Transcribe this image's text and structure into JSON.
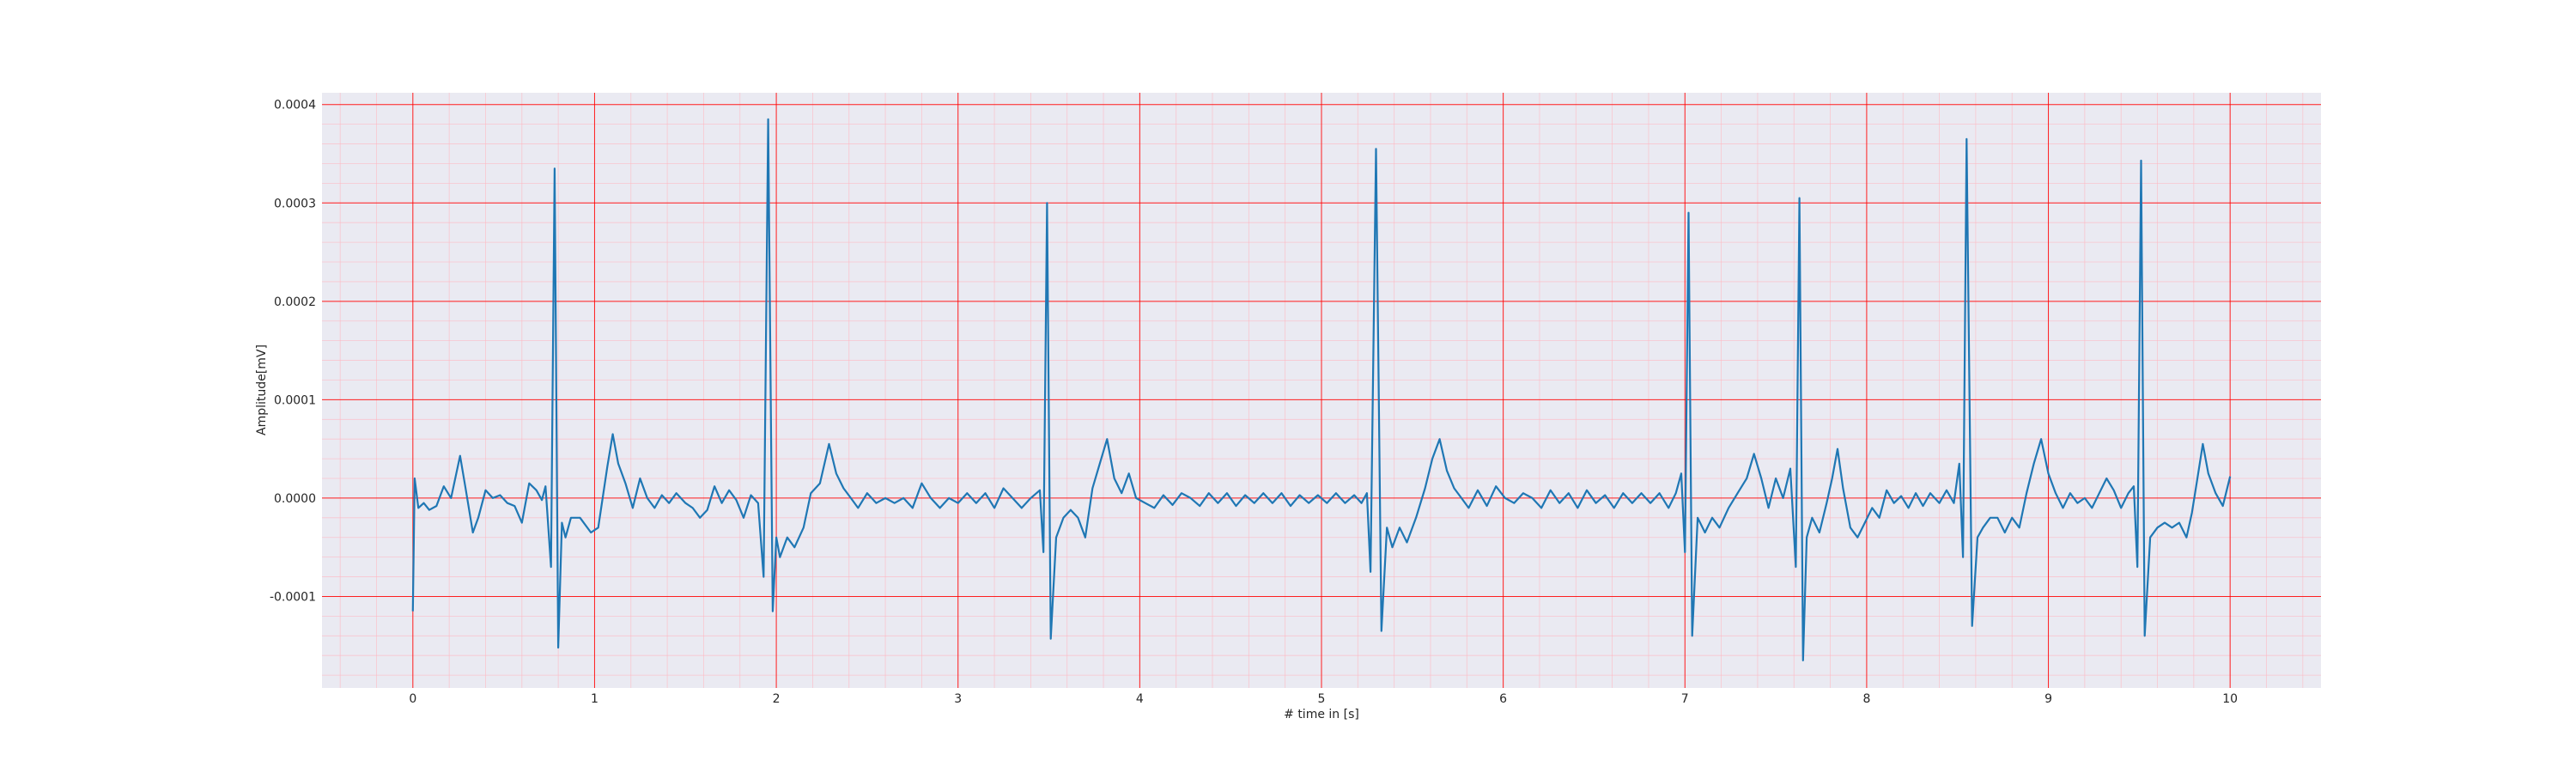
{
  "chart_data": {
    "type": "line",
    "title": "",
    "xlabel": "# time in [s]",
    "ylabel": "Amplitude[mV]",
    "xlim": [
      -0.5,
      10.5
    ],
    "ylim": [
      -0.000193,
      0.000412
    ],
    "xticks": [
      0,
      1,
      2,
      3,
      4,
      5,
      6,
      7,
      8,
      9,
      10
    ],
    "xtick_labels": [
      "0",
      "1",
      "2",
      "3",
      "4",
      "5",
      "6",
      "7",
      "8",
      "9",
      "10"
    ],
    "yticks": [
      -0.0001,
      0.0,
      0.0001,
      0.0002,
      0.0003,
      0.0004
    ],
    "ytick_labels": [
      "-0.0001",
      "0.0000",
      "0.0001",
      "0.0002",
      "0.0003",
      "0.0004"
    ],
    "grid": "major red lines every 1 s and 0.0001 mV; minor pink lines every 0.2 s and 0.00002 mV",
    "background": "#eaeaf2",
    "colors": {
      "line": "#1f77b4",
      "major_grid": "#ff0000",
      "minor_grid": "#ffb6c1"
    },
    "series": [
      {
        "sampling": "approximate trace traced from the figure",
        "points": [
          [
            0.0,
            -0.000115
          ],
          [
            0.01,
            2e-05
          ],
          [
            0.03,
            -1e-05
          ],
          [
            0.06,
            -5e-06
          ],
          [
            0.09,
            -1.2e-05
          ],
          [
            0.13,
            -8e-06
          ],
          [
            0.17,
            1.2e-05
          ],
          [
            0.21,
            0.0
          ],
          [
            0.26,
            4.3e-05
          ],
          [
            0.29,
            1e-05
          ],
          [
            0.33,
            -3.5e-05
          ],
          [
            0.36,
            -2e-05
          ],
          [
            0.4,
            8e-06
          ],
          [
            0.44,
            0.0
          ],
          [
            0.48,
            3e-06
          ],
          [
            0.52,
            -5e-06
          ],
          [
            0.56,
            -8e-06
          ],
          [
            0.6,
            -2.5e-05
          ],
          [
            0.64,
            1.5e-05
          ],
          [
            0.68,
            8e-06
          ],
          [
            0.71,
            -2e-06
          ],
          [
            0.73,
            1.2e-05
          ],
          [
            0.76,
            -7e-05
          ],
          [
            0.78,
            0.000335
          ],
          [
            0.8,
            -0.000152
          ],
          [
            0.82,
            -2.5e-05
          ],
          [
            0.84,
            -4e-05
          ],
          [
            0.87,
            -2e-05
          ],
          [
            0.92,
            -2e-05
          ],
          [
            0.98,
            -3.5e-05
          ],
          [
            1.02,
            -3e-05
          ],
          [
            1.07,
            3.2e-05
          ],
          [
            1.1,
            6.5e-05
          ],
          [
            1.13,
            3.5e-05
          ],
          [
            1.17,
            1.5e-05
          ],
          [
            1.21,
            -1e-05
          ],
          [
            1.25,
            2e-05
          ],
          [
            1.29,
            0.0
          ],
          [
            1.33,
            -1e-05
          ],
          [
            1.37,
            3e-06
          ],
          [
            1.41,
            -5e-06
          ],
          [
            1.45,
            5e-06
          ],
          [
            1.5,
            -5e-06
          ],
          [
            1.54,
            -1e-05
          ],
          [
            1.58,
            -2e-05
          ],
          [
            1.62,
            -1.2e-05
          ],
          [
            1.66,
            1.2e-05
          ],
          [
            1.7,
            -5e-06
          ],
          [
            1.74,
            8e-06
          ],
          [
            1.78,
            -2e-06
          ],
          [
            1.82,
            -2e-05
          ],
          [
            1.86,
            3e-06
          ],
          [
            1.9,
            -5e-06
          ],
          [
            1.93,
            -8e-05
          ],
          [
            1.955,
            0.000385
          ],
          [
            1.98,
            -0.000115
          ],
          [
            2.0,
            -4e-05
          ],
          [
            2.02,
            -6e-05
          ],
          [
            2.06,
            -4e-05
          ],
          [
            2.1,
            -5e-05
          ],
          [
            2.15,
            -3e-05
          ],
          [
            2.19,
            5e-06
          ],
          [
            2.24,
            1.5e-05
          ],
          [
            2.29,
            5.5e-05
          ],
          [
            2.33,
            2.5e-05
          ],
          [
            2.37,
            1e-05
          ],
          [
            2.41,
            0.0
          ],
          [
            2.45,
            -1e-05
          ],
          [
            2.5,
            5e-06
          ],
          [
            2.55,
            -5e-06
          ],
          [
            2.6,
            0.0
          ],
          [
            2.65,
            -5e-06
          ],
          [
            2.7,
            0.0
          ],
          [
            2.75,
            -1e-05
          ],
          [
            2.8,
            1.5e-05
          ],
          [
            2.85,
            0.0
          ],
          [
            2.9,
            -1e-05
          ],
          [
            2.95,
            0.0
          ],
          [
            3.0,
            -5e-06
          ],
          [
            3.05,
            5e-06
          ],
          [
            3.1,
            -5e-06
          ],
          [
            3.15,
            5e-06
          ],
          [
            3.2,
            -1e-05
          ],
          [
            3.25,
            1e-05
          ],
          [
            3.3,
            0.0
          ],
          [
            3.35,
            -1e-05
          ],
          [
            3.4,
            0.0
          ],
          [
            3.45,
            8e-06
          ],
          [
            3.47,
            -5.5e-05
          ],
          [
            3.49,
            0.0003
          ],
          [
            3.51,
            -0.000143
          ],
          [
            3.54,
            -4e-05
          ],
          [
            3.58,
            -2e-05
          ],
          [
            3.62,
            -1.2e-05
          ],
          [
            3.66,
            -2e-05
          ],
          [
            3.7,
            -4e-05
          ],
          [
            3.74,
            1e-05
          ],
          [
            3.78,
            3.5e-05
          ],
          [
            3.82,
            6e-05
          ],
          [
            3.86,
            2e-05
          ],
          [
            3.9,
            5e-06
          ],
          [
            3.94,
            2.5e-05
          ],
          [
            3.98,
            0.0
          ],
          [
            4.03,
            -5e-06
          ],
          [
            4.08,
            -1e-05
          ],
          [
            4.13,
            3e-06
          ],
          [
            4.18,
            -7e-06
          ],
          [
            4.23,
            5e-06
          ],
          [
            4.28,
            0.0
          ],
          [
            4.33,
            -8e-06
          ],
          [
            4.38,
            5e-06
          ],
          [
            4.43,
            -5e-06
          ],
          [
            4.48,
            5e-06
          ],
          [
            4.53,
            -8e-06
          ],
          [
            4.58,
            3e-06
          ],
          [
            4.63,
            -5e-06
          ],
          [
            4.68,
            5e-06
          ],
          [
            4.73,
            -5e-06
          ],
          [
            4.78,
            5e-06
          ],
          [
            4.83,
            -8e-06
          ],
          [
            4.88,
            3e-06
          ],
          [
            4.93,
            -5e-06
          ],
          [
            4.98,
            3e-06
          ],
          [
            5.03,
            -5e-06
          ],
          [
            5.08,
            5e-06
          ],
          [
            5.13,
            -5e-06
          ],
          [
            5.18,
            3e-06
          ],
          [
            5.22,
            -5e-06
          ],
          [
            5.25,
            5e-06
          ],
          [
            5.27,
            -7.5e-05
          ],
          [
            5.3,
            0.000355
          ],
          [
            5.33,
            -0.000135
          ],
          [
            5.36,
            -3e-05
          ],
          [
            5.39,
            -5e-05
          ],
          [
            5.43,
            -3e-05
          ],
          [
            5.47,
            -4.5e-05
          ],
          [
            5.52,
            -2e-05
          ],
          [
            5.57,
            1e-05
          ],
          [
            5.61,
            4e-05
          ],
          [
            5.65,
            6e-05
          ],
          [
            5.69,
            2.8e-05
          ],
          [
            5.73,
            1e-05
          ],
          [
            5.77,
            0.0
          ],
          [
            5.81,
            -1e-05
          ],
          [
            5.86,
            8e-06
          ],
          [
            5.91,
            -8e-06
          ],
          [
            5.96,
            1.2e-05
          ],
          [
            6.01,
            0.0
          ],
          [
            6.06,
            -5e-06
          ],
          [
            6.11,
            5e-06
          ],
          [
            6.16,
            0.0
          ],
          [
            6.21,
            -1e-05
          ],
          [
            6.26,
            8e-06
          ],
          [
            6.31,
            -5e-06
          ],
          [
            6.36,
            5e-06
          ],
          [
            6.41,
            -1e-05
          ],
          [
            6.46,
            8e-06
          ],
          [
            6.51,
            -5e-06
          ],
          [
            6.56,
            3e-06
          ],
          [
            6.61,
            -1e-05
          ],
          [
            6.66,
            5e-06
          ],
          [
            6.71,
            -5e-06
          ],
          [
            6.76,
            5e-06
          ],
          [
            6.81,
            -5e-06
          ],
          [
            6.86,
            5e-06
          ],
          [
            6.91,
            -1e-05
          ],
          [
            6.95,
            5e-06
          ],
          [
            6.98,
            2.5e-05
          ],
          [
            7.0,
            -5.5e-05
          ],
          [
            7.02,
            0.00029
          ],
          [
            7.04,
            -0.00014
          ],
          [
            7.07,
            -2e-05
          ],
          [
            7.11,
            -3.5e-05
          ],
          [
            7.15,
            -2e-05
          ],
          [
            7.19,
            -3e-05
          ],
          [
            7.24,
            -1e-05
          ],
          [
            7.29,
            5e-06
          ],
          [
            7.34,
            2e-05
          ],
          [
            7.38,
            4.5e-05
          ],
          [
            7.42,
            2e-05
          ],
          [
            7.46,
            -1e-05
          ],
          [
            7.5,
            2e-05
          ],
          [
            7.54,
            0.0
          ],
          [
            7.58,
            3e-05
          ],
          [
            7.61,
            -7e-05
          ],
          [
            7.63,
            0.000305
          ],
          [
            7.65,
            -0.000165
          ],
          [
            7.67,
            -4e-05
          ],
          [
            7.7,
            -2e-05
          ],
          [
            7.74,
            -3.5e-05
          ],
          [
            7.78,
            -5e-06
          ],
          [
            7.81,
            2e-05
          ],
          [
            7.84,
            5e-05
          ],
          [
            7.87,
            1e-05
          ],
          [
            7.91,
            -3e-05
          ],
          [
            7.95,
            -4e-05
          ],
          [
            7.99,
            -2.5e-05
          ],
          [
            8.03,
            -1e-05
          ],
          [
            8.07,
            -2e-05
          ],
          [
            8.11,
            8e-06
          ],
          [
            8.15,
            -5e-06
          ],
          [
            8.19,
            2e-06
          ],
          [
            8.23,
            -1e-05
          ],
          [
            8.27,
            5e-06
          ],
          [
            8.31,
            -8e-06
          ],
          [
            8.35,
            5e-06
          ],
          [
            8.4,
            -5e-06
          ],
          [
            8.44,
            8e-06
          ],
          [
            8.48,
            -5e-06
          ],
          [
            8.51,
            3.5e-05
          ],
          [
            8.53,
            -6e-05
          ],
          [
            8.55,
            0.000365
          ],
          [
            8.58,
            -0.00013
          ],
          [
            8.61,
            -4e-05
          ],
          [
            8.64,
            -3e-05
          ],
          [
            8.68,
            -2e-05
          ],
          [
            8.72,
            -2e-05
          ],
          [
            8.76,
            -3.5e-05
          ],
          [
            8.8,
            -2e-05
          ],
          [
            8.84,
            -3e-05
          ],
          [
            8.88,
            5e-06
          ],
          [
            8.92,
            3.5e-05
          ],
          [
            8.96,
            6e-05
          ],
          [
            9.0,
            2.5e-05
          ],
          [
            9.04,
            5e-06
          ],
          [
            9.08,
            -1e-05
          ],
          [
            9.12,
            5e-06
          ],
          [
            9.16,
            -5e-06
          ],
          [
            9.2,
            0.0
          ],
          [
            9.24,
            -1e-05
          ],
          [
            9.28,
            5e-06
          ],
          [
            9.32,
            2e-05
          ],
          [
            9.36,
            8e-06
          ],
          [
            9.4,
            -1e-05
          ],
          [
            9.44,
            5e-06
          ],
          [
            9.47,
            1.2e-05
          ],
          [
            9.49,
            -7e-05
          ],
          [
            9.51,
            0.000343
          ],
          [
            9.53,
            -0.00014
          ],
          [
            9.56,
            -4e-05
          ],
          [
            9.6,
            -3e-05
          ],
          [
            9.64,
            -2.5e-05
          ],
          [
            9.68,
            -3e-05
          ],
          [
            9.72,
            -2.5e-05
          ],
          [
            9.76,
            -4e-05
          ],
          [
            9.79,
            -1.5e-05
          ],
          [
            9.82,
            2e-05
          ],
          [
            9.85,
            5.5e-05
          ],
          [
            9.88,
            2.5e-05
          ],
          [
            9.92,
            5e-06
          ],
          [
            9.96,
            -8e-06
          ],
          [
            10.0,
            2.2e-05
          ]
        ]
      }
    ]
  }
}
